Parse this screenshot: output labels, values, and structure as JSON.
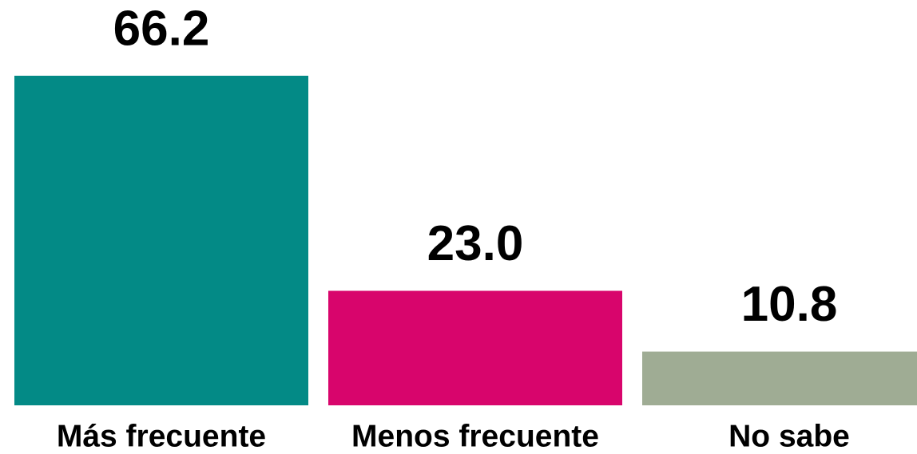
{
  "chart_data": {
    "type": "bar",
    "categories": [
      "Más frecuente",
      "Menos frecuente",
      "No sabe"
    ],
    "values": [
      66.2,
      23.0,
      10.8
    ],
    "value_labels": [
      "66.2",
      "23.0",
      "10.8"
    ],
    "colors": [
      "#038a86",
      "#d8056c",
      "#9fac94"
    ]
  }
}
